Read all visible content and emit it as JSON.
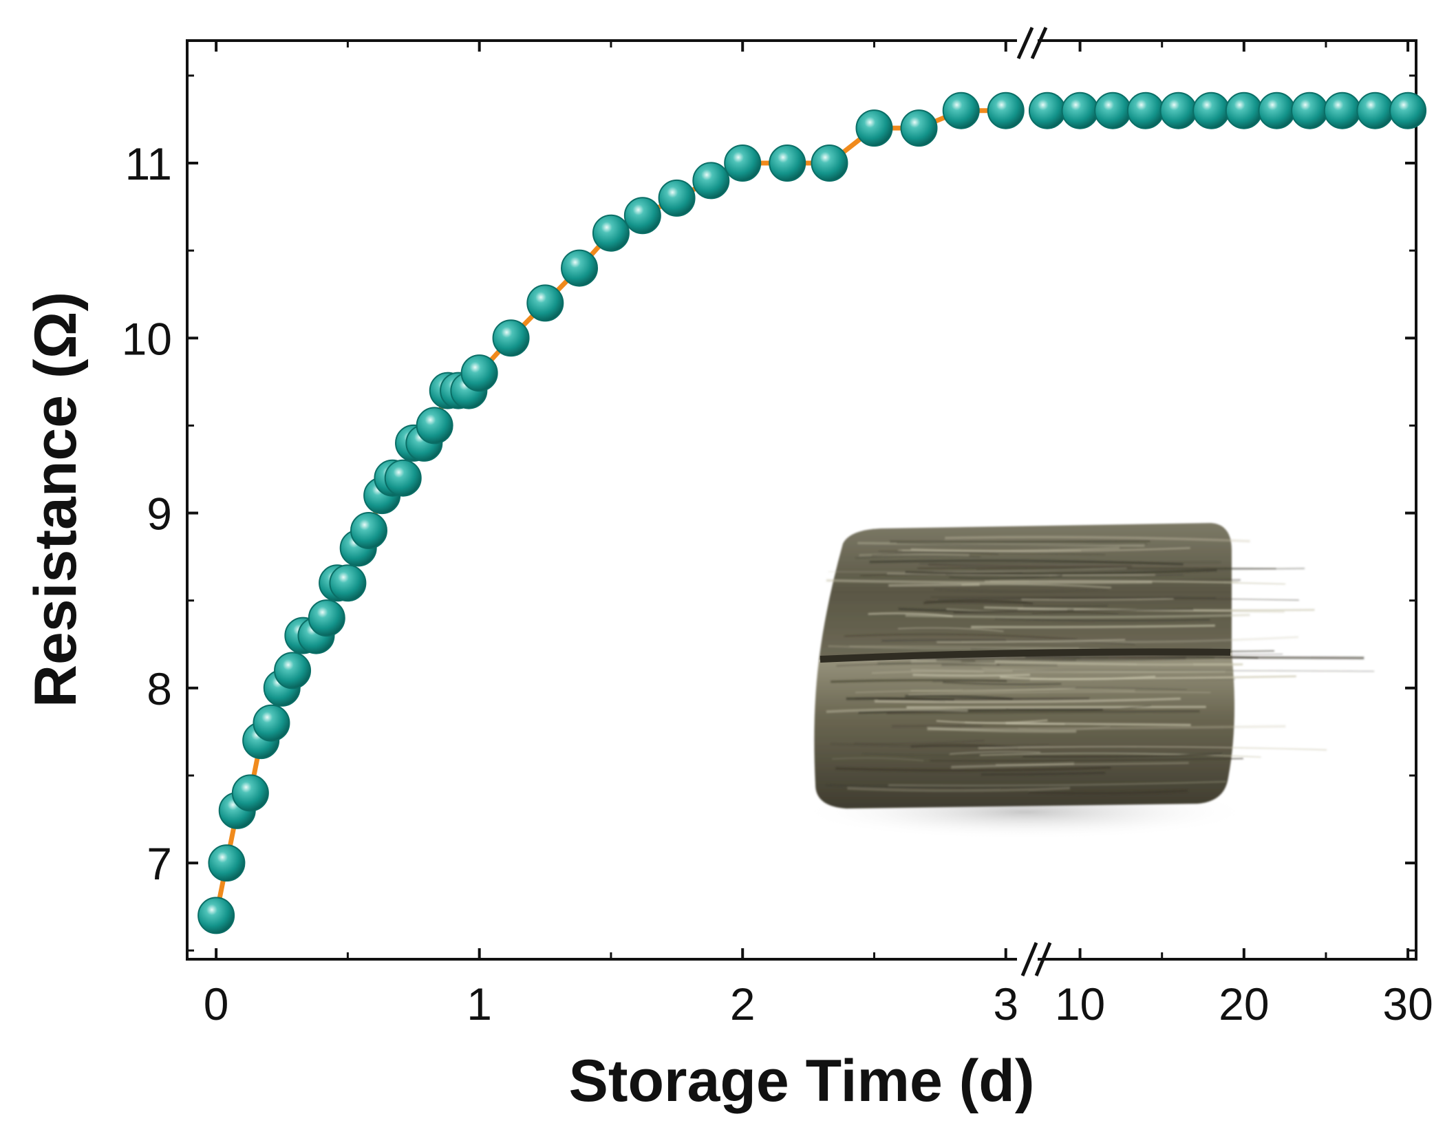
{
  "chart_data": {
    "type": "scatter",
    "title": "",
    "xlabel": "Storage Time (d)",
    "ylabel": "Resistance (Ω)",
    "ylim": [
      6.45,
      11.7
    ],
    "x_axis_break": true,
    "segments": [
      {
        "xlim": [
          -0.05,
          3.1
        ],
        "ticks": [
          0,
          1,
          2,
          3
        ],
        "tick_labels": [
          "0",
          "1",
          "2",
          "3"
        ]
      },
      {
        "xlim": [
          7.5,
          30.5
        ],
        "ticks": [
          10,
          20,
          30
        ],
        "tick_labels": [
          "10",
          "20",
          "30"
        ]
      }
    ],
    "y_ticks": [
      7,
      8,
      9,
      10,
      11
    ],
    "y_tick_labels": [
      "7",
      "8",
      "9",
      "10",
      "11"
    ],
    "grid": false,
    "marker_color": "#13938a",
    "line_color": "#f08a1c",
    "series": [
      {
        "name": "",
        "x": [
          0,
          0.04,
          0.08,
          0.13,
          0.17,
          0.21,
          0.25,
          0.29,
          0.33,
          0.38,
          0.42,
          0.46,
          0.5,
          0.54,
          0.58,
          0.63,
          0.67,
          0.71,
          0.75,
          0.79,
          0.83,
          0.88,
          0.92,
          0.96,
          1.0,
          1.12,
          1.25,
          1.38,
          1.5,
          1.62,
          1.75,
          1.88,
          2.0,
          2.17,
          2.33,
          2.5,
          2.67,
          2.83,
          3.0,
          8,
          10,
          12,
          14,
          16,
          18,
          20,
          22,
          24,
          26,
          28,
          30
        ],
        "y": [
          6.7,
          7.0,
          7.3,
          7.4,
          7.7,
          7.8,
          8.0,
          8.1,
          8.3,
          8.3,
          8.4,
          8.6,
          8.6,
          8.8,
          8.9,
          9.1,
          9.2,
          9.2,
          9.4,
          9.4,
          9.5,
          9.7,
          9.7,
          9.7,
          9.8,
          10.0,
          10.2,
          10.4,
          10.6,
          10.7,
          10.8,
          10.9,
          11.0,
          11.0,
          11.0,
          11.2,
          11.2,
          11.3,
          11.3,
          11.3,
          11.3,
          11.3,
          11.3,
          11.3,
          11.3,
          11.3,
          11.3,
          11.3,
          11.3,
          11.3,
          11.3
        ]
      }
    ],
    "inset": {
      "subject": "photo of sample block"
    }
  }
}
